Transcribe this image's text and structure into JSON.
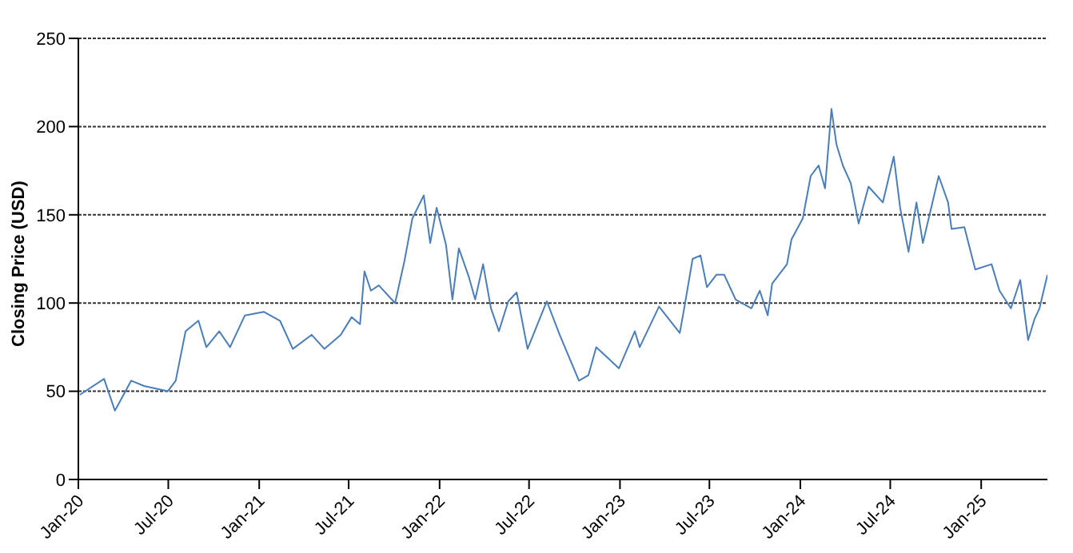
{
  "chart_data": {
    "type": "line",
    "ylabel": "Closing Price (USD)",
    "x": [
      "2020-01-04",
      "2020-02-22",
      "2020-03-15",
      "2020-04-17",
      "2020-05-13",
      "2020-06-30",
      "2020-07-16",
      "2020-08-05",
      "2020-08-31",
      "2020-09-16",
      "2020-10-12",
      "2020-11-03",
      "2020-12-03",
      "2021-01-10",
      "2021-02-12",
      "2021-03-10",
      "2021-04-17",
      "2021-05-13",
      "2021-06-15",
      "2021-07-07",
      "2021-07-24",
      "2021-08-02",
      "2021-08-15",
      "2021-08-31",
      "2021-10-03",
      "2021-10-22",
      "2021-11-07",
      "2021-11-30",
      "2021-12-13",
      "2021-12-26",
      "2022-01-14",
      "2022-01-27",
      "2022-02-09",
      "2022-03-01",
      "2022-03-14",
      "2022-03-30",
      "2022-04-15",
      "2022-05-01",
      "2022-05-20",
      "2022-06-06",
      "2022-06-28",
      "2022-08-06",
      "2022-09-01",
      "2022-10-10",
      "2022-10-29",
      "2022-11-14",
      "2022-12-30",
      "2023-01-31",
      "2023-02-10",
      "2023-03-21",
      "2023-05-02",
      "2023-05-11",
      "2023-05-28",
      "2023-06-13",
      "2023-06-26",
      "2023-07-15",
      "2023-07-31",
      "2023-08-23",
      "2023-09-24",
      "2023-10-11",
      "2023-10-27",
      "2023-11-05",
      "2023-12-05",
      "2023-12-14",
      "2024-01-06",
      "2024-01-22",
      "2024-02-07",
      "2024-02-20",
      "2024-03-04",
      "2024-03-14",
      "2024-03-27",
      "2024-04-12",
      "2024-04-28",
      "2024-05-18",
      "2024-06-16",
      "2024-07-08",
      "2024-07-21",
      "2024-08-07",
      "2024-08-23",
      "2024-09-05",
      "2024-10-07",
      "2024-10-26",
      "2024-11-02",
      "2024-11-28",
      "2024-12-20",
      "2025-01-22",
      "2025-02-07",
      "2025-03-02",
      "2025-03-21",
      "2025-04-06",
      "2025-04-19",
      "2025-04-29",
      "2025-05-15"
    ],
    "series": [
      {
        "color": "#4a7ebb",
        "values": [
          48,
          57,
          39,
          56,
          53,
          50,
          56,
          84,
          90,
          75,
          84,
          75,
          93,
          95,
          90,
          74,
          82,
          74,
          82,
          92,
          88,
          118,
          107,
          110,
          100,
          124,
          148,
          161,
          134,
          154,
          133,
          102,
          131,
          115,
          102,
          122,
          97,
          84,
          101,
          106,
          74,
          101,
          82,
          56,
          59,
          75,
          63,
          84,
          75,
          98,
          83,
          97,
          125,
          127,
          109,
          116,
          116,
          102,
          97,
          107,
          93,
          111,
          122,
          136,
          148,
          172,
          178,
          165,
          210,
          190,
          178,
          168,
          145,
          166,
          157,
          183,
          154,
          129,
          157,
          134,
          172,
          157,
          142,
          143,
          119,
          122,
          107,
          97,
          113,
          79,
          91,
          97,
          116
        ]
      }
    ],
    "xlim": [
      "2020-01-01",
      "2025-05-15"
    ],
    "xticks": [
      {
        "value": "2020-01-01",
        "label": "Jan-20"
      },
      {
        "value": "2020-07-01",
        "label": "Jul-20"
      },
      {
        "value": "2021-01-01",
        "label": "Jan-21"
      },
      {
        "value": "2021-07-01",
        "label": "Jul-21"
      },
      {
        "value": "2022-01-01",
        "label": "Jan-22"
      },
      {
        "value": "2022-07-01",
        "label": "Jul-22"
      },
      {
        "value": "2023-01-01",
        "label": "Jan-23"
      },
      {
        "value": "2023-07-01",
        "label": "Jul-23"
      },
      {
        "value": "2024-01-01",
        "label": "Jan-24"
      },
      {
        "value": "2024-07-01",
        "label": "Jul-24"
      },
      {
        "value": "2025-01-01",
        "label": "Jan-25"
      }
    ],
    "ylim": [
      0,
      250
    ],
    "yticks": [
      0,
      50,
      100,
      150,
      200,
      250
    ],
    "grid": "y",
    "legend": false,
    "marker": "none",
    "line_style": "solid"
  }
}
